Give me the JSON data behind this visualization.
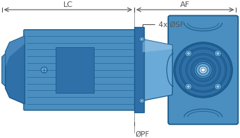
{
  "bg_color": "#ffffff",
  "blue": "#4a8fc0",
  "blue_dark": "#1a5a8a",
  "blue_mid": "#3070a8",
  "blue_light": "#6aaad8",
  "blue_lighter": "#a0c8e8",
  "dim_col": "#555555",
  "label_LC": "LC",
  "label_AF": "AF",
  "label_4xOSF": "4x ØSF",
  "label_OPF": "ØPF",
  "figsize": [
    3.45,
    1.99
  ],
  "dpi": 100
}
